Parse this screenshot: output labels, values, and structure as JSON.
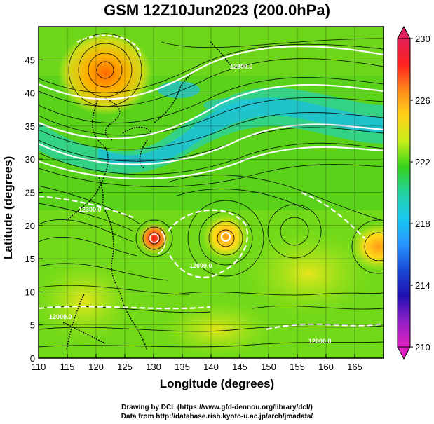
{
  "title": "GSM 12Z10Jun2023 (200.0hPa)",
  "x_axis": {
    "label": "Longitude (degrees)",
    "ticks": [
      "110",
      "115",
      "120",
      "125",
      "130",
      "135",
      "140",
      "145",
      "150",
      "155",
      "160",
      "165"
    ]
  },
  "y_axis": {
    "label": "Latitude  (degrees)",
    "ticks": [
      "0",
      "5",
      "10",
      "15",
      "20",
      "25",
      "30",
      "35",
      "40",
      "45"
    ]
  },
  "colorbar": {
    "ticks": [
      "230",
      "226",
      "222",
      "218",
      "214",
      "210"
    ],
    "colors": [
      "#e0205a",
      "#ff2020",
      "#ff8a1a",
      "#ffd21a",
      "#c8ee1a",
      "#34d21a",
      "#22d2a0",
      "#18c8f0",
      "#2896ff",
      "#1a4ad8",
      "#2010b0",
      "#9020c8",
      "#e020c0"
    ]
  },
  "contour_labels": [
    "12300.0",
    "12300.0",
    "12000.0",
    "12000.0",
    "12000.0"
  ],
  "footer": {
    "line1": "Drawing by DCL (https://www.gfd-dennou.org/library/dcl/)",
    "line2": "Data from http://database.rish.kyoto-u.ac.jp/arch/jmadata/"
  },
  "chart_data": {
    "type": "heatmap",
    "title": "GSM 12Z10Jun2023 (200.0hPa)",
    "xlabel": "Longitude (degrees)",
    "ylabel": "Latitude  (degrees)",
    "xlim": [
      110,
      170
    ],
    "ylim": [
      0,
      50
    ],
    "colorbar_range": [
      210,
      230
    ],
    "features": [
      {
        "lon": 121,
        "lat": 44.5,
        "value": 227.5
      },
      {
        "lon": 130.5,
        "lat": 20.5,
        "value": 227
      },
      {
        "lon": 142,
        "lat": 20.5,
        "value": 225.5
      },
      {
        "lon": 168,
        "lat": 19,
        "value": 225
      },
      {
        "lon": 137,
        "lat": 40,
        "value": 219
      },
      {
        "lon": 150,
        "lat": 37,
        "value": 219
      },
      {
        "lon": 165,
        "lat": 41,
        "value": 219
      }
    ]
  }
}
